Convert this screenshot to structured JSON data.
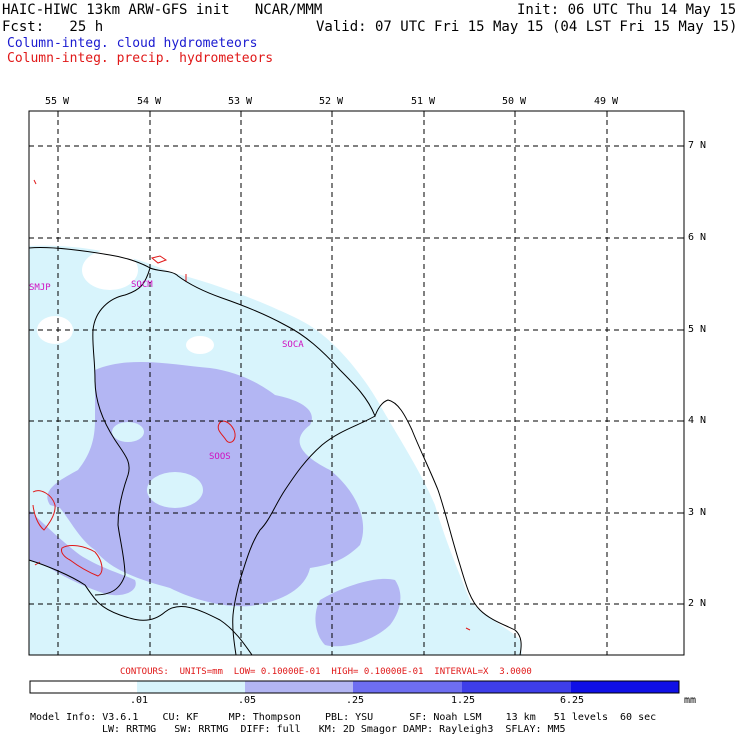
{
  "header": {
    "title": "HAIC-HIWC 13km ARW-GFS init   NCAR/MMM",
    "init": "Init: 06 UTC Thu 14 May 15",
    "fcst": "Fcst:   25 h",
    "valid": "Valid: 07 UTC Fri 15 May 15 (04 LST Fri 15 May 15)",
    "field_cloud": "Column-integ. cloud hydrometeors",
    "field_precip": "Column-integ. precip. hydrometeors"
  },
  "lon_labels": [
    "55 W",
    "54 W",
    "53 W",
    "52 W",
    "51 W",
    "50 W",
    "49 W"
  ],
  "lat_labels": [
    "7 N",
    "6 N",
    "5 N",
    "4 N",
    "3 N",
    "2 N"
  ],
  "stations": [
    "SMJP",
    "SOCM",
    "SOCA",
    "SOOS"
  ],
  "contours_line": "CONTOURS:  UNITS=mm  LOW= 0.10000E-01  HIGH= 0.10000E-01  INTERVAL=X  3.0000",
  "colorbar": {
    "ticks": [
      ".01",
      ".05",
      ".25",
      "1.25",
      "6.25"
    ],
    "units": "mm",
    "colors": [
      "#ffffff",
      "#d8f4fc",
      "#b3b6f3",
      "#6e6ef1",
      "#3e3ee9",
      "#1010e6"
    ]
  },
  "model_info": {
    "line1": "Model Info: V3.6.1    CU: KF     MP: Thompson    PBL: YSU      SF: Noah LSM    13 km   51 levels  60 sec",
    "line2": "LW: RRTMG   SW: RRTMG  DIFF: full   KM: 2D Smagor DAMP: Rayleigh3  SFLAY: MM5"
  },
  "colors": {
    "cloud_light": "#d8f4fc",
    "cloud_mid": "#b3b6f3",
    "precip_contour": "#e01818",
    "station_label": "#d010c0",
    "title_blue": "#1a1ad0"
  }
}
